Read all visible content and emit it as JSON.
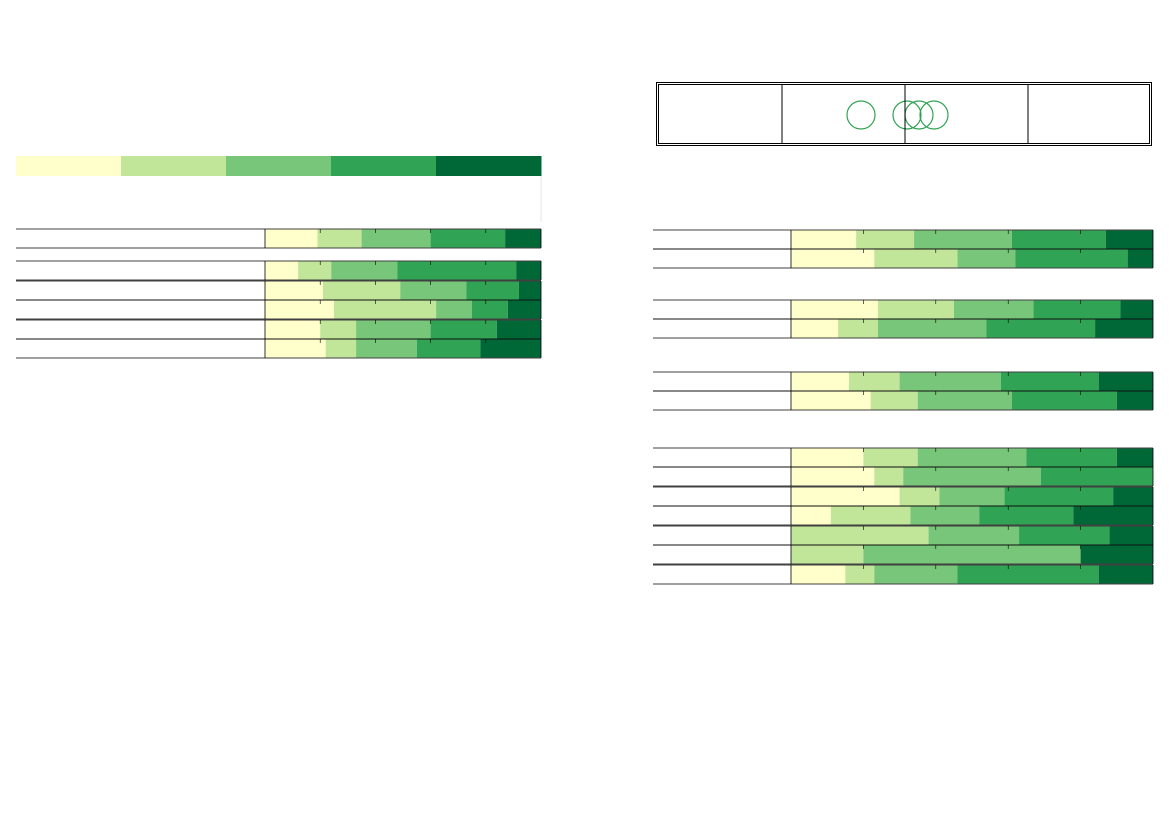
{
  "palette": [
    "#ffffcc",
    "#c2e699",
    "#78c679",
    "#31a354",
    "#006837"
  ],
  "line_color": "#000000",
  "chart_data": [
    {
      "type": "bar",
      "stacked": "percent",
      "orientation": "horizontal",
      "panel": "left",
      "groups": [
        {
          "rows": [
            {
              "values": [
                19,
                16,
                25,
                27,
                13
              ]
            }
          ]
        },
        {
          "rows": [
            {
              "values": [
                12,
                12,
                24,
                43,
                9
              ]
            },
            {
              "values": [
                21,
                28,
                24,
                19,
                8
              ]
            },
            {
              "values": [
                25,
                37,
                13,
                13,
                12
              ]
            },
            {
              "values": [
                20,
                13,
                27,
                24,
                16
              ]
            },
            {
              "values": [
                22,
                11,
                22,
                23,
                22
              ]
            }
          ]
        }
      ]
    },
    {
      "type": "bar",
      "stacked": "percent",
      "orientation": "horizontal",
      "panel": "right",
      "groups": [
        {
          "rows": [
            {
              "values": [
                18,
                16,
                27,
                26,
                13
              ]
            },
            {
              "values": [
                23,
                23,
                16,
                31,
                7
              ]
            }
          ]
        },
        {
          "rows": [
            {
              "values": [
                24,
                21,
                22,
                24,
                9
              ]
            },
            {
              "values": [
                13,
                11,
                30,
                30,
                16
              ]
            }
          ]
        },
        {
          "rows": [
            {
              "values": [
                16,
                14,
                28,
                27,
                15
              ]
            },
            {
              "values": [
                22,
                13,
                26,
                29,
                10
              ]
            }
          ]
        },
        {
          "rows": [
            {
              "values": [
                20,
                15,
                30,
                25,
                10
              ]
            },
            {
              "values": [
                23,
                8,
                38,
                31,
                0
              ]
            },
            {
              "values": [
                30,
                11,
                18,
                30,
                11
              ]
            },
            {
              "values": [
                11,
                22,
                19,
                26,
                22
              ]
            },
            {
              "values": [
                0,
                38,
                25,
                25,
                12
              ]
            },
            {
              "values": [
                0,
                20,
                60,
                0,
                20
              ]
            },
            {
              "values": [
                15,
                8,
                23,
                39,
                15
              ]
            }
          ]
        }
      ]
    }
  ]
}
